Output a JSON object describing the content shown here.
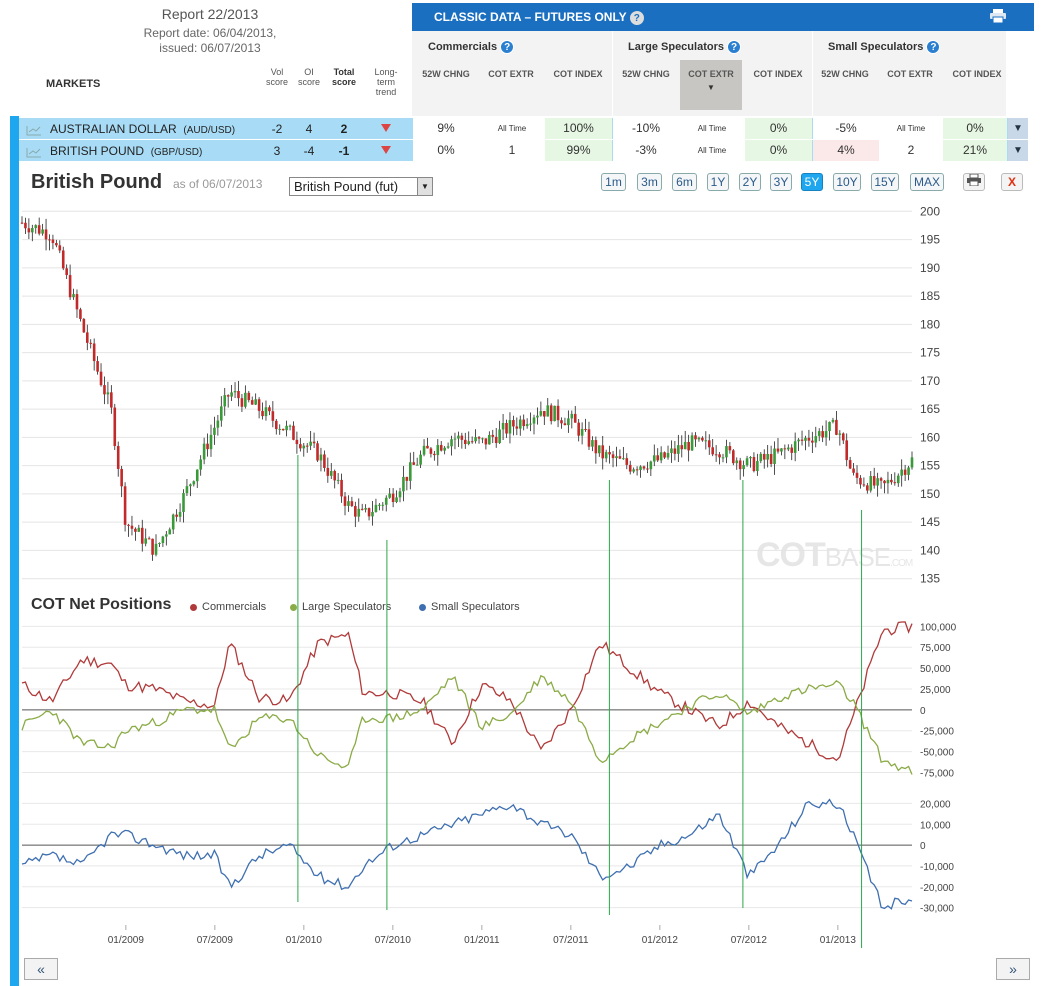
{
  "report": {
    "title": "Report 22/2013",
    "date_line": "Report date: 06/04/2013,",
    "issued_line": "issued: 06/07/2013"
  },
  "columns": {
    "markets": "MARKETS",
    "vol": "Vol score",
    "oi": "OI score",
    "total": "Total score",
    "trend": "Long-term trend"
  },
  "banner": {
    "title": "CLASSIC DATA – FUTURES ONLY",
    "help": "?"
  },
  "groups": [
    {
      "label": "Commercials",
      "help": "?"
    },
    {
      "label": "Large Speculators",
      "help": "?"
    },
    {
      "label": "Small Speculators",
      "help": "?"
    }
  ],
  "subheaders": {
    "chng": "52W CHNG",
    "extr": "COT EXTR",
    "index": "COT INDEX"
  },
  "rows": [
    {
      "name": "AUSTRALIAN DOLLAR",
      "code": "(AUD/USD)",
      "vol": "-2",
      "oi": "4",
      "total": "2",
      "cells": [
        "9%",
        "All Time",
        "100%",
        "-10%",
        "All Time",
        "0%",
        "-5%",
        "All Time",
        "0%"
      ]
    },
    {
      "name": "BRITISH POUND",
      "code": "(GBP/USD)",
      "vol": "3",
      "oi": "-4",
      "total": "-1",
      "cells": [
        "0%",
        "1",
        "99%",
        "-3%",
        "All Time",
        "0%",
        "4%",
        "2",
        "21%"
      ]
    }
  ],
  "chart_header": {
    "title": "British Pound",
    "asof": "as of 06/07/2013",
    "select_value": "British Pound (fut)",
    "ranges": [
      "1m",
      "3m",
      "6m",
      "1Y",
      "2Y",
      "3Y",
      "5Y",
      "10Y",
      "15Y",
      "MAX"
    ],
    "active_range": "5Y",
    "close": "X"
  },
  "watermark": {
    "a": "COT",
    "b": "BASE",
    "c": ".COM"
  },
  "cot": {
    "title": "COT Net Positions",
    "legend": [
      "Commercials",
      "Large Speculators",
      "Small Speculators"
    ]
  },
  "colors": {
    "commercials": "#b03a3a",
    "large": "#8aab45",
    "small": "#3e6fb0",
    "marker": "#2ba84a"
  },
  "chart_data": [
    {
      "type": "candlestick",
      "title": "British Pound",
      "x_ticks": [
        "01/2009",
        "07/2009",
        "01/2010",
        "07/2010",
        "01/2011",
        "07/2011",
        "01/2012",
        "07/2012",
        "01/2013"
      ],
      "y_ticks": [
        135,
        140,
        145,
        150,
        155,
        160,
        165,
        170,
        175,
        180,
        185,
        190,
        195,
        200
      ],
      "ylim": [
        133,
        202
      ],
      "x": [
        "2008-06",
        "2008-08",
        "2008-10",
        "2008-12",
        "2009-01",
        "2009-03",
        "2009-05",
        "2009-07",
        "2009-08",
        "2009-10",
        "2009-12",
        "2010-02",
        "2010-04",
        "2010-05",
        "2010-07",
        "2010-09",
        "2010-11",
        "2011-01",
        "2011-03",
        "2011-05",
        "2011-07",
        "2011-09",
        "2011-11",
        "2012-01",
        "2012-03",
        "2012-05",
        "2012-07",
        "2012-09",
        "2012-11",
        "2013-01",
        "2013-02",
        "2013-04",
        "2013-06"
      ],
      "close": [
        198,
        196,
        180,
        165,
        145,
        140,
        150,
        162,
        168,
        165,
        161,
        157,
        148,
        146,
        150,
        157,
        160,
        159,
        162,
        165,
        163,
        157,
        155,
        156,
        159,
        158,
        155,
        157,
        160,
        162,
        153,
        151,
        156
      ]
    },
    {
      "type": "line",
      "title": "COT Net Positions",
      "y_ticks": [
        100000,
        75000,
        50000,
        25000,
        0,
        -25000,
        -50000,
        -75000
      ],
      "ylim": [
        -90000,
        110000
      ],
      "series": [
        {
          "name": "Commercials",
          "values": [
            30000,
            10000,
            60000,
            55000,
            30000,
            25000,
            10000,
            5000,
            80000,
            15000,
            10000,
            80000,
            90000,
            20000,
            20000,
            10000,
            -40000,
            30000,
            10000,
            -50000,
            0,
            80000,
            50000,
            20000,
            0,
            -20000,
            10000,
            -20000,
            -40000,
            -60000,
            -10000,
            95000,
            100000
          ]
        },
        {
          "name": "Large Speculators",
          "values": [
            -20000,
            0,
            -40000,
            -45000,
            -25000,
            -15000,
            0,
            0,
            -50000,
            -10000,
            -10000,
            -55000,
            -70000,
            -10000,
            -10000,
            0,
            40000,
            -20000,
            -5000,
            40000,
            10000,
            -60000,
            -35000,
            -15000,
            5000,
            20000,
            -5000,
            15000,
            25000,
            30000,
            10000,
            -60000,
            -75000
          ]
        },
        {
          "name": "Small Speculators",
          "values": [
            -10000,
            -5000,
            -10000,
            5000,
            5000,
            0,
            -5000,
            -5000,
            -20000,
            -5000,
            0,
            -15000,
            -20000,
            -10000,
            0,
            5000,
            10000,
            15000,
            20000,
            10000,
            5000,
            -15000,
            -10000,
            0,
            5000,
            15000,
            -15000,
            0,
            20000,
            20000,
            5000,
            -30000,
            -25000
          ]
        }
      ],
      "y_ticks_small": [
        20000,
        10000,
        0,
        -10000,
        -20000,
        -30000
      ]
    }
  ]
}
